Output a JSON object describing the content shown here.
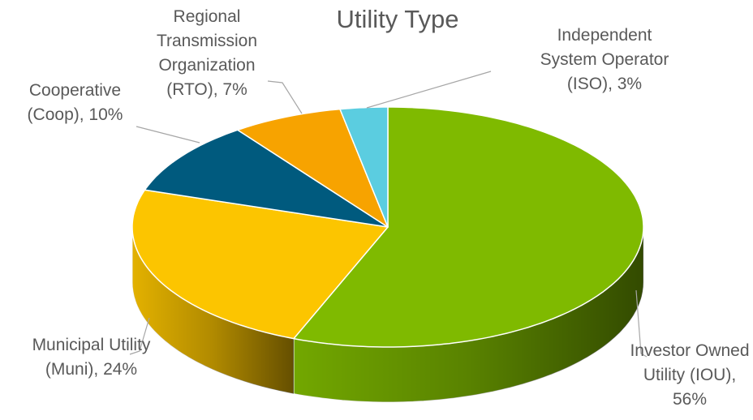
{
  "chart_data": {
    "type": "pie",
    "title": "Utility Type",
    "three_d": true,
    "value_labels": [
      "Investor Owned Utility (IOU), 56%",
      "Municipal Utility (Muni), 24%",
      "Cooperative (Coop), 10%",
      "Regional Transmission Organization (RTO), 7%",
      "Independent System Operator (ISO), 3%"
    ],
    "values": [
      56,
      24,
      10,
      7,
      3
    ],
    "colors": [
      "#7fba00",
      "#fcc500",
      "#005a7e",
      "#f7a300",
      "#5bcde0"
    ]
  }
}
